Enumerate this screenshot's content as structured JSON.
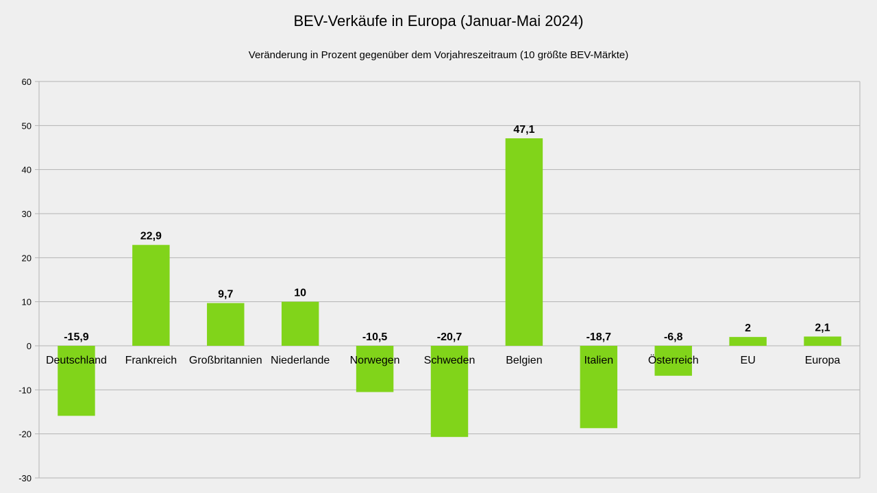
{
  "chart_data": {
    "type": "bar",
    "title": "BEV-Verkäufe in Europa (Januar-Mai 2024)",
    "subtitle": "Veränderung in Prozent gegenüber dem Vorjahreszeitraum (10 größte BEV-Märkte)",
    "categories": [
      "Deutschland",
      "Frankreich",
      "Großbritannien",
      "Niederlande",
      "Norwegen",
      "Schweden",
      "Belgien",
      "Italien",
      "Österreich",
      "EU",
      "Europa"
    ],
    "values": [
      -15.9,
      22.9,
      9.7,
      10,
      -10.5,
      -20.7,
      47.1,
      -18.7,
      -6.8,
      2,
      2.1
    ],
    "data_labels": [
      "-15,9",
      "22,9",
      "9,7",
      "10",
      "-10,5",
      "-20,7",
      "47,1",
      "-18,7",
      "-6,8",
      "2",
      "2,1"
    ],
    "ylim": [
      -30,
      60
    ],
    "yticks": [
      60,
      50,
      40,
      30,
      20,
      10,
      0,
      -10,
      -20,
      -30
    ],
    "grid": true,
    "xlabel": "",
    "ylabel": "",
    "bar_color": "#81d41a",
    "grid_color": "#b3b3b3"
  }
}
